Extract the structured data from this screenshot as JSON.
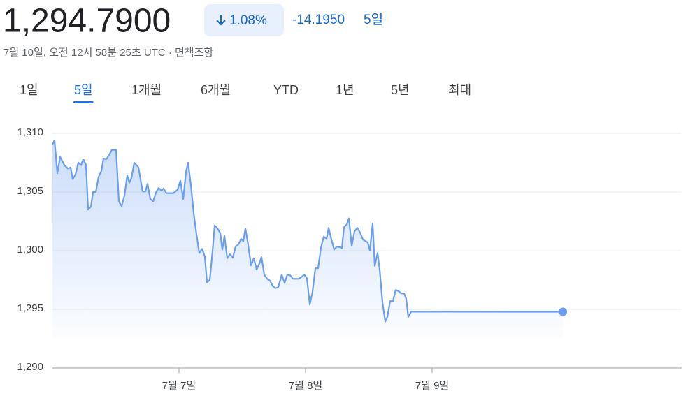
{
  "header": {
    "price": "1,294.7900",
    "change_percent": "1.08%",
    "change": "-14.1950",
    "period": "5일",
    "timestamp": "7월 10일, 오전 12시 58분 25초 UTC · 면책조항"
  },
  "tabs": {
    "items": [
      "1일",
      "5일",
      "1개월",
      "6개월",
      "YTD",
      "1년",
      "5년",
      "최대"
    ],
    "selected": 1
  },
  "chart_data": {
    "type": "line",
    "color": "#6a9ef0",
    "grid": true,
    "xlim": [
      0,
      900
    ],
    "xticks": [
      {
        "value": 181,
        "label": "7월 7일"
      },
      {
        "value": 362,
        "label": "7월 8일"
      },
      {
        "value": 543,
        "label": "7월 9일"
      }
    ],
    "ylim": [
      1290,
      1310
    ],
    "yticks": [
      {
        "value": 1290,
        "label": "1,290"
      },
      {
        "value": 1295,
        "label": "1,295"
      },
      {
        "value": 1300,
        "label": "1,300"
      },
      {
        "value": 1305,
        "label": "1,305"
      },
      {
        "value": 1310,
        "label": "1,310"
      }
    ],
    "series": [
      {
        "x": [
          0,
          3,
          7,
          11,
          17,
          22,
          26,
          29,
          33,
          37,
          41,
          44,
          48,
          51,
          55,
          58,
          62,
          66,
          70,
          73,
          77,
          81,
          85,
          91,
          95,
          99,
          103,
          107,
          110,
          113,
          117,
          123,
          129,
          133,
          136,
          140,
          144,
          148,
          152,
          156,
          159,
          163,
          173,
          179,
          183,
          187,
          191,
          194,
          198,
          202,
          206,
          210,
          214,
          218,
          221,
          225,
          229,
          232,
          236,
          240,
          243,
          246,
          250,
          254,
          258,
          262,
          266,
          270,
          273,
          276,
          280,
          284,
          288,
          292,
          296,
          299,
          303,
          307,
          311,
          315,
          319,
          323,
          328,
          332,
          336,
          340,
          344,
          352,
          356,
          360,
          364,
          368,
          372,
          376,
          380,
          384,
          388,
          392,
          395,
          399,
          403,
          407,
          411,
          414,
          417,
          421,
          424,
          428,
          432,
          436,
          440,
          444,
          448,
          451,
          454,
          458,
          461,
          465,
          468,
          472,
          476,
          479,
          483,
          487,
          491,
          495,
          499,
          503,
          506,
          509,
          513,
          730
        ],
        "values": [
          1309.05,
          1309.4,
          1306.6,
          1308.0,
          1307.3,
          1307.0,
          1307.1,
          1306.1,
          1306.5,
          1307.5,
          1307.3,
          1307.8,
          1307.3,
          1303.5,
          1303.75,
          1305.0,
          1305.0,
          1306.3,
          1306.8,
          1307.85,
          1307.8,
          1308.15,
          1308.6,
          1308.6,
          1304.2,
          1303.8,
          1304.7,
          1306.4,
          1305.8,
          1306.2,
          1307.5,
          1307.1,
          1305.05,
          1305.05,
          1305.7,
          1304.4,
          1304.2,
          1304.95,
          1305.35,
          1305.1,
          1305.3,
          1304.9,
          1304.9,
          1305.2,
          1305.95,
          1304.4,
          1306.7,
          1307.5,
          1305.6,
          1303.2,
          1301.4,
          1299.8,
          1300.15,
          1299.5,
          1297.3,
          1297.5,
          1299.95,
          1302.15,
          1301.9,
          1301.5,
          1300.1,
          1301.25,
          1299.35,
          1299.7,
          1299.4,
          1300.35,
          1300.55,
          1301.0,
          1300.8,
          1301.9,
          1300.5,
          1298.75,
          1299.35,
          1298.4,
          1298.9,
          1299.45,
          1297.95,
          1297.6,
          1297.45,
          1297.0,
          1296.8,
          1296.9,
          1297.95,
          1297.25,
          1297.95,
          1297.9,
          1297.6,
          1297.6,
          1297.75,
          1297.95,
          1297.65,
          1295.4,
          1296.5,
          1298.5,
          1298.5,
          1300.25,
          1301.2,
          1301.0,
          1301.95,
          1300.95,
          1300.1,
          1300.35,
          1300.3,
          1300.2,
          1302.0,
          1302.25,
          1302.75,
          1300.4,
          1301.65,
          1301.95,
          1301.55,
          1300.95,
          1300.8,
          1300.7,
          1300.0,
          1302.3,
          1298.7,
          1299.8,
          1298.4,
          1295.6,
          1293.95,
          1294.35,
          1295.7,
          1295.7,
          1296.65,
          1296.55,
          1296.35,
          1296.35,
          1295.9,
          1294.35,
          1294.8,
          1294.79
        ]
      }
    ]
  }
}
